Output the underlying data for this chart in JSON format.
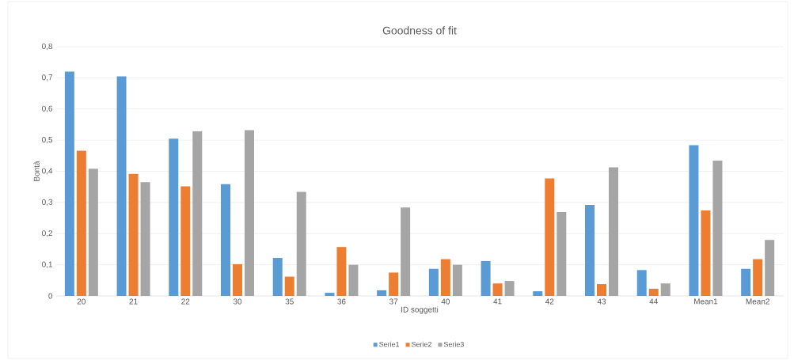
{
  "chart_data": {
    "type": "bar",
    "title": "Goodness of fit",
    "xlabel": "ID soggetti",
    "ylabel": "Bontà",
    "categories": [
      "20",
      "21",
      "22",
      "30",
      "35",
      "36",
      "37",
      "40",
      "41",
      "42",
      "43",
      "44",
      "Mean1",
      "Mean2"
    ],
    "series": [
      {
        "name": "Serie1",
        "color": "#5b9bd5",
        "values": [
          0.72,
          0.705,
          0.505,
          0.359,
          0.122,
          0.01,
          0.018,
          0.087,
          0.112,
          0.015,
          0.292,
          0.083,
          0.484,
          0.087
        ]
      },
      {
        "name": "Serie2",
        "color": "#ed7d31",
        "values": [
          0.466,
          0.392,
          0.352,
          0.102,
          0.062,
          0.157,
          0.075,
          0.118,
          0.04,
          0.377,
          0.038,
          0.023,
          0.274,
          0.118
        ]
      },
      {
        "name": "Serie3",
        "color": "#a5a5a5",
        "values": [
          0.408,
          0.365,
          0.528,
          0.532,
          0.334,
          0.1,
          0.284,
          0.1,
          0.048,
          0.269,
          0.413,
          0.04,
          0.434,
          0.18
        ]
      }
    ],
    "ylim": [
      0,
      0.8
    ],
    "yticks": [
      0,
      {
        "value": 0.1,
        "label": "0,1"
      },
      {
        "value": 0.2,
        "label": "0,2"
      },
      {
        "value": 0.3,
        "label": "0,3"
      },
      {
        "value": 0.4,
        "label": "0,4"
      },
      {
        "value": 0.5,
        "label": "0,5"
      },
      {
        "value": 0.6,
        "label": "0,6"
      },
      {
        "value": 0.7,
        "label": "0,7"
      },
      {
        "value": 0.8,
        "label": "0,8"
      }
    ],
    "grid": "y",
    "legend": "bottom"
  }
}
